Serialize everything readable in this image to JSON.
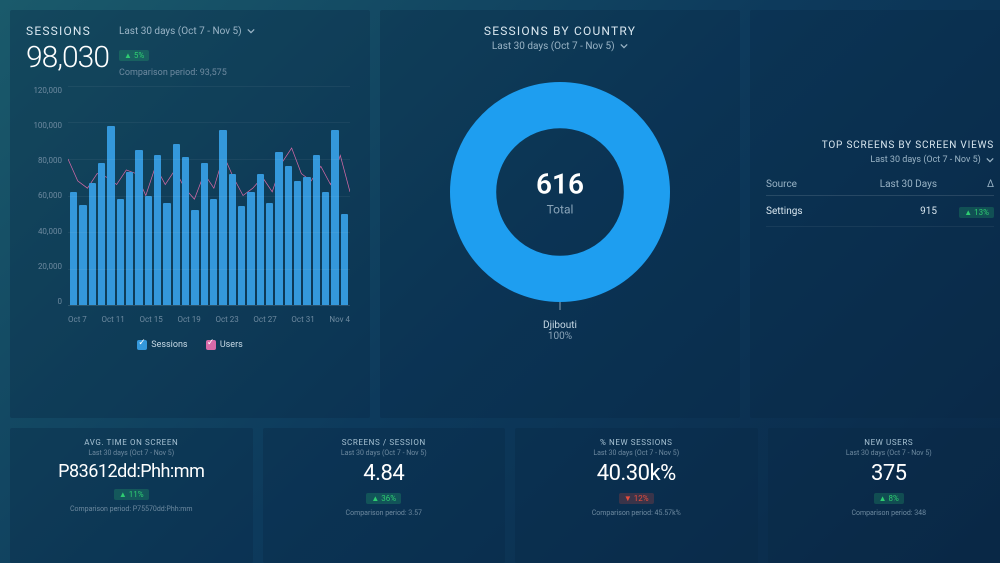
{
  "colors": {
    "bar_fill": "#3498db",
    "line_stroke": "#d86aa8",
    "donut_fill": "#1e9ef0",
    "bg_gradient_from": "#1a5a6b",
    "bg_gradient_to": "#0a2847",
    "text_primary": "#ffffff",
    "text_muted": "#6e8aa0",
    "text_soft": "#9ab4c6",
    "delta_up_bg": "rgba(46,204,113,0.22)",
    "delta_up_fg": "#2ecc71",
    "delta_down_bg": "rgba(231,76,60,0.22)",
    "delta_down_fg": "#e74c3c"
  },
  "sessions_panel": {
    "label": "SESSIONS",
    "period": "Last 30 days (Oct 7 - Nov 5)",
    "value": "98,030",
    "delta": "▲ 5%",
    "delta_dir": "up",
    "comparison": "Comparison period: 93,575",
    "chart": {
      "type": "bar+line",
      "ylim": [
        0,
        120000
      ],
      "y_ticks": [
        "120,000",
        "100,000",
        "80,000",
        "60,000",
        "40,000",
        "20,000",
        "0"
      ],
      "x_ticks": [
        "Oct 7",
        "Oct 11",
        "Oct 15",
        "Oct 19",
        "Oct 23",
        "Oct 27",
        "Oct 31",
        "Nov 4"
      ],
      "bar_values": [
        62000,
        55000,
        67000,
        78000,
        98000,
        58000,
        73000,
        85000,
        60000,
        82000,
        56000,
        88000,
        81000,
        52000,
        78000,
        58000,
        96000,
        72000,
        54000,
        62000,
        72000,
        56000,
        84000,
        76000,
        68000,
        70000,
        82000,
        62000,
        96000,
        50000
      ],
      "line_values": [
        80000,
        68000,
        64000,
        72000,
        70000,
        66000,
        74000,
        72000,
        60000,
        76000,
        66000,
        74000,
        64000,
        58000,
        72000,
        64000,
        82000,
        70000,
        60000,
        64000,
        70000,
        62000,
        78000,
        86000,
        72000,
        68000,
        76000,
        66000,
        82000,
        62000
      ],
      "bar_width_ratio": 0.85,
      "grid_color": "rgba(255,255,255,0.05)"
    },
    "legend": {
      "sessions": "Sessions",
      "users": "Users",
      "sessions_color": "#3498db",
      "users_color": "#d86aa8"
    }
  },
  "country_panel": {
    "title": "SESSIONS BY COUNTRY",
    "period": "Last 30 days (Oct 7 - Nov 5)",
    "donut": {
      "type": "donut",
      "total_value": "616",
      "total_label": "Total",
      "inner_ratio": 0.58,
      "segments": [
        {
          "label": "Djibouti",
          "pct": "100%",
          "fraction": 1.0,
          "color": "#1e9ef0"
        }
      ]
    }
  },
  "top_screens_panel": {
    "title": "TOP SCREENS BY SCREEN VIEWS",
    "period": "Last 30 days (Oct 7 - Nov 5)",
    "columns": [
      "Source",
      "Last 30 Days",
      "Δ"
    ],
    "rows": [
      {
        "source": "Settings",
        "value": "915",
        "delta": "▲ 13%",
        "delta_dir": "up"
      }
    ]
  },
  "stats": [
    {
      "title": "AVG. TIME ON SCREEN",
      "period": "Last 30 days (Oct 7 - Nov 5)",
      "value": "P83612dd:Phh:mm",
      "delta": "▲ 11%",
      "delta_dir": "up",
      "comparison": "Comparison period: P75570dd:Phh:mm"
    },
    {
      "title": "SCREENS / SESSION",
      "period": "Last 30 days (Oct 7 - Nov 5)",
      "value": "4.84",
      "delta": "▲ 36%",
      "delta_dir": "up",
      "comparison": "Comparison period: 3.57"
    },
    {
      "title": "% NEW SESSIONS",
      "period": "Last 30 days (Oct 7 - Nov 5)",
      "value": "40.30k%",
      "delta": "▼ 12%",
      "delta_dir": "down",
      "comparison": "Comparison period: 45.57k%"
    },
    {
      "title": "NEW USERS",
      "period": "Last 30 days (Oct 7 - Nov 5)",
      "value": "375",
      "delta": "▲ 8%",
      "delta_dir": "up",
      "comparison": "Comparison period: 348"
    }
  ]
}
